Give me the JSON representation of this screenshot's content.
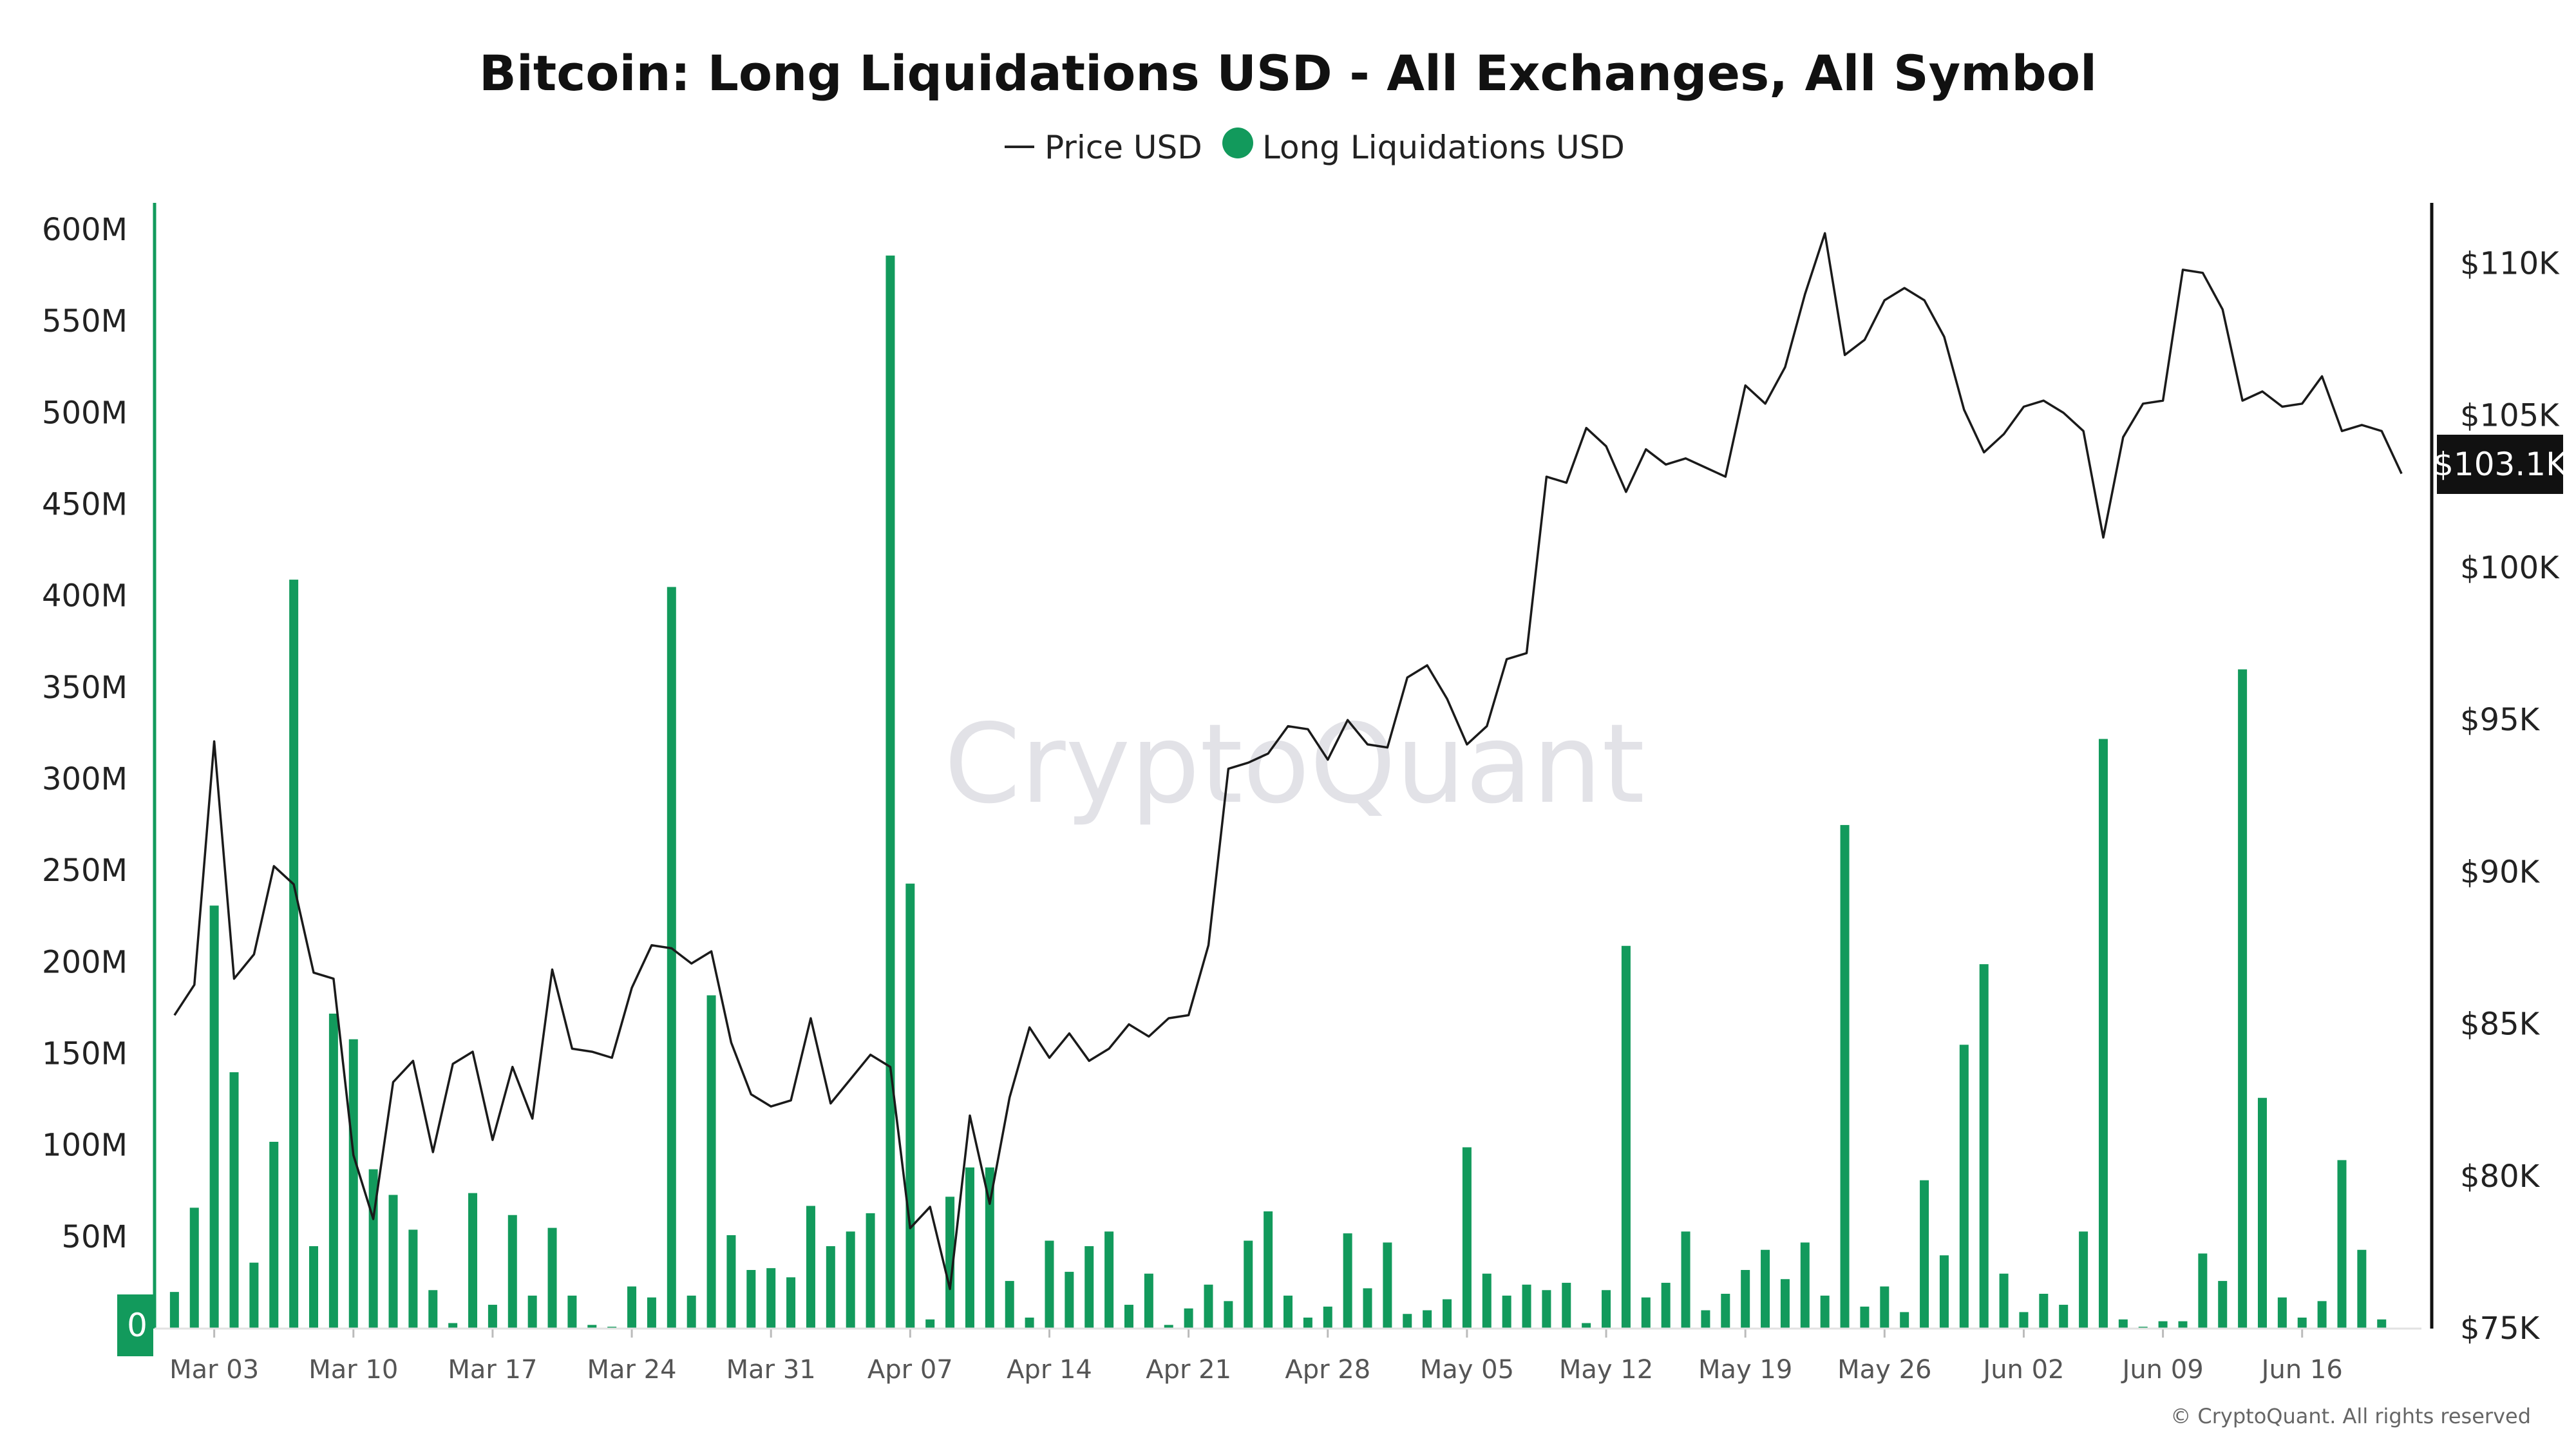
{
  "chart_data": {
    "type": "bar",
    "title": "Bitcoin: Long Liquidations USD - All Exchanges, All Symbol",
    "legend": [
      {
        "name": "Price USD",
        "marker": "line",
        "color": "#222222"
      },
      {
        "name": "Long Liquidations USD",
        "marker": "dot",
        "color": "#129a5c"
      }
    ],
    "legend_position": "top-center",
    "watermark": "CryptoQuant",
    "copyright": "© CryptoQuant. All rights reserved",
    "last_price_label": "$103.1K",
    "zero_label": "0",
    "colors": {
      "bars": "#129a5c",
      "price_line": "#1a1a1a",
      "axis": "#111111"
    },
    "y_left": {
      "ylim": [
        0,
        600000000
      ],
      "ticks": [
        "0",
        "50M",
        "100M",
        "150M",
        "200M",
        "250M",
        "300M",
        "350M",
        "400M",
        "450M",
        "500M",
        "550M",
        "600M"
      ]
    },
    "y_right": {
      "ylim": [
        75000,
        112000
      ],
      "ticks": [
        "$75K",
        "$80K",
        "$85K",
        "$90K",
        "$95K",
        "$100K",
        "$105K",
        "$110K"
      ]
    },
    "x_range": [
      "2025-02-28",
      "2025-06-22"
    ],
    "x_ticks": [
      "Mar 03",
      "Mar 10",
      "Mar 17",
      "Mar 24",
      "Mar 31",
      "Apr 07",
      "Apr 14",
      "Apr 21",
      "Apr 28",
      "May 05",
      "May 12",
      "May 19",
      "May 26",
      "Jun 02",
      "Jun 09",
      "Jun 16"
    ],
    "start_date": "2025-03-01",
    "series": [
      {
        "name": "Long Liquidations USD",
        "kind": "bar",
        "axis": "left",
        "values": [
          20000000,
          66000000,
          231000000,
          140000000,
          36000000,
          102000000,
          409000000,
          45000000,
          172000000,
          158000000,
          87000000,
          73000000,
          54000000,
          21000000,
          3000000,
          74000000,
          13000000,
          62000000,
          18000000,
          55000000,
          18000000,
          2000000,
          1000000,
          23000000,
          17000000,
          405000000,
          18000000,
          182000000,
          51000000,
          32000000,
          33000000,
          28000000,
          67000000,
          45000000,
          53000000,
          63000000,
          586000000,
          243000000,
          5000000,
          72000000,
          88000000,
          88000000,
          26000000,
          6000000,
          48000000,
          31000000,
          45000000,
          53000000,
          13000000,
          30000000,
          2000000,
          11000000,
          24000000,
          15000000,
          48000000,
          64000000,
          18000000,
          6000000,
          12000000,
          52000000,
          22000000,
          47000000,
          8000000,
          10000000,
          16000000,
          99000000,
          30000000,
          18000000,
          24000000,
          21000000,
          25000000,
          3000000,
          21000000,
          209000000,
          17000000,
          25000000,
          53000000,
          10000000,
          19000000,
          32000000,
          43000000,
          27000000,
          47000000,
          18000000,
          275000000,
          12000000,
          23000000,
          9000000,
          81000000,
          40000000,
          155000000,
          199000000,
          30000000,
          9000000,
          19000000,
          13000000,
          53000000,
          322000000,
          5000000,
          1000000,
          4000000,
          4000000,
          41000000,
          26000000,
          360000000,
          126000000,
          17000000,
          6000000,
          15000000,
          92000000,
          43000000,
          5000000
        ]
      },
      {
        "name": "Price USD",
        "kind": "line",
        "axis": "right",
        "values": [
          85300,
          86300,
          94300,
          86500,
          87300,
          90200,
          89600,
          86700,
          86500,
          80700,
          78600,
          83100,
          83800,
          80800,
          83700,
          84100,
          81200,
          83600,
          81900,
          86800,
          84200,
          84100,
          83900,
          86200,
          87600,
          87500,
          87000,
          87400,
          84400,
          82700,
          82300,
          82500,
          85200,
          82400,
          83200,
          84000,
          83600,
          78300,
          79000,
          76300,
          82000,
          79100,
          82600,
          84900,
          83900,
          84700,
          83800,
          84200,
          85000,
          84600,
          85200,
          85300,
          87600,
          93400,
          93600,
          93900,
          94800,
          94700,
          93700,
          95000,
          94200,
          94100,
          96400,
          96800,
          95700,
          94200,
          94800,
          97000,
          97200,
          103000,
          102800,
          104600,
          104000,
          102500,
          103900,
          103400,
          103600,
          103300,
          103000,
          106000,
          105400,
          106600,
          109000,
          111000,
          107000,
          107500,
          108800,
          109200,
          108800,
          107600,
          105200,
          103800,
          104400,
          105300,
          105500,
          105100,
          104500,
          101000,
          104300,
          105400,
          105500,
          109800,
          109700,
          108500,
          105500,
          105800,
          105300,
          105400,
          106300,
          104500,
          104700,
          104500,
          103100
        ]
      }
    ]
  }
}
